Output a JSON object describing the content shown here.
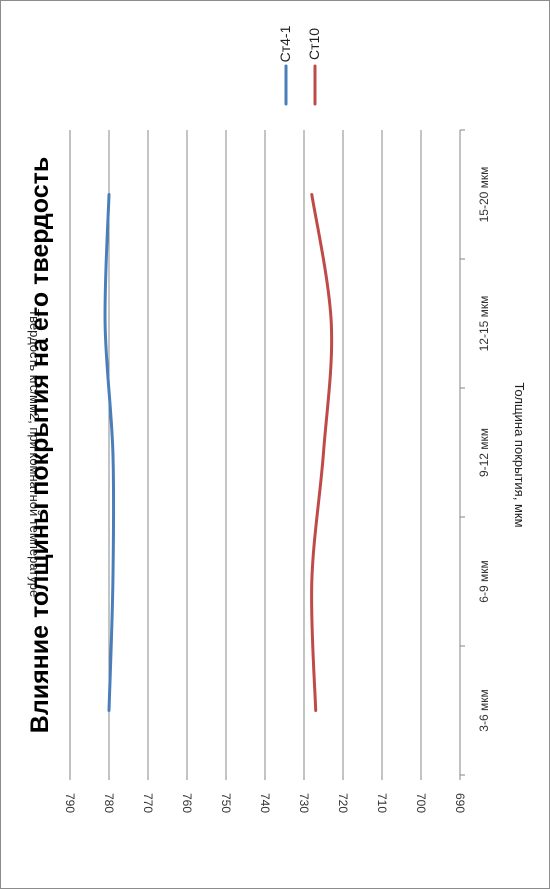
{
  "chart_data": {
    "type": "line",
    "title": "Влияние толщины покрытия на его твердость",
    "xlabel": "Толщина покрытия, мкм",
    "ylabel": "Твердость кгс/мм2, при комнатной температуре",
    "categories": [
      "3-6 мкм",
      "6-9 мкм",
      "9-12 мкм",
      "12-15 мкм",
      "15-20 мкм"
    ],
    "series": [
      {
        "name": "Ст4-1",
        "color": "#4a7ebb",
        "values": [
          780,
          779,
          779,
          781,
          780
        ]
      },
      {
        "name": "Ст10",
        "color": "#be4b48",
        "values": [
          727,
          728,
          725,
          723,
          728
        ]
      }
    ],
    "ylim": [
      690,
      790
    ],
    "yticks": [
      790,
      780,
      770,
      760,
      750,
      740,
      730,
      720,
      710,
      700,
      690
    ],
    "grid": true,
    "legend_position": "top",
    "rotation": "chart rotated 90 degrees clockwise"
  }
}
